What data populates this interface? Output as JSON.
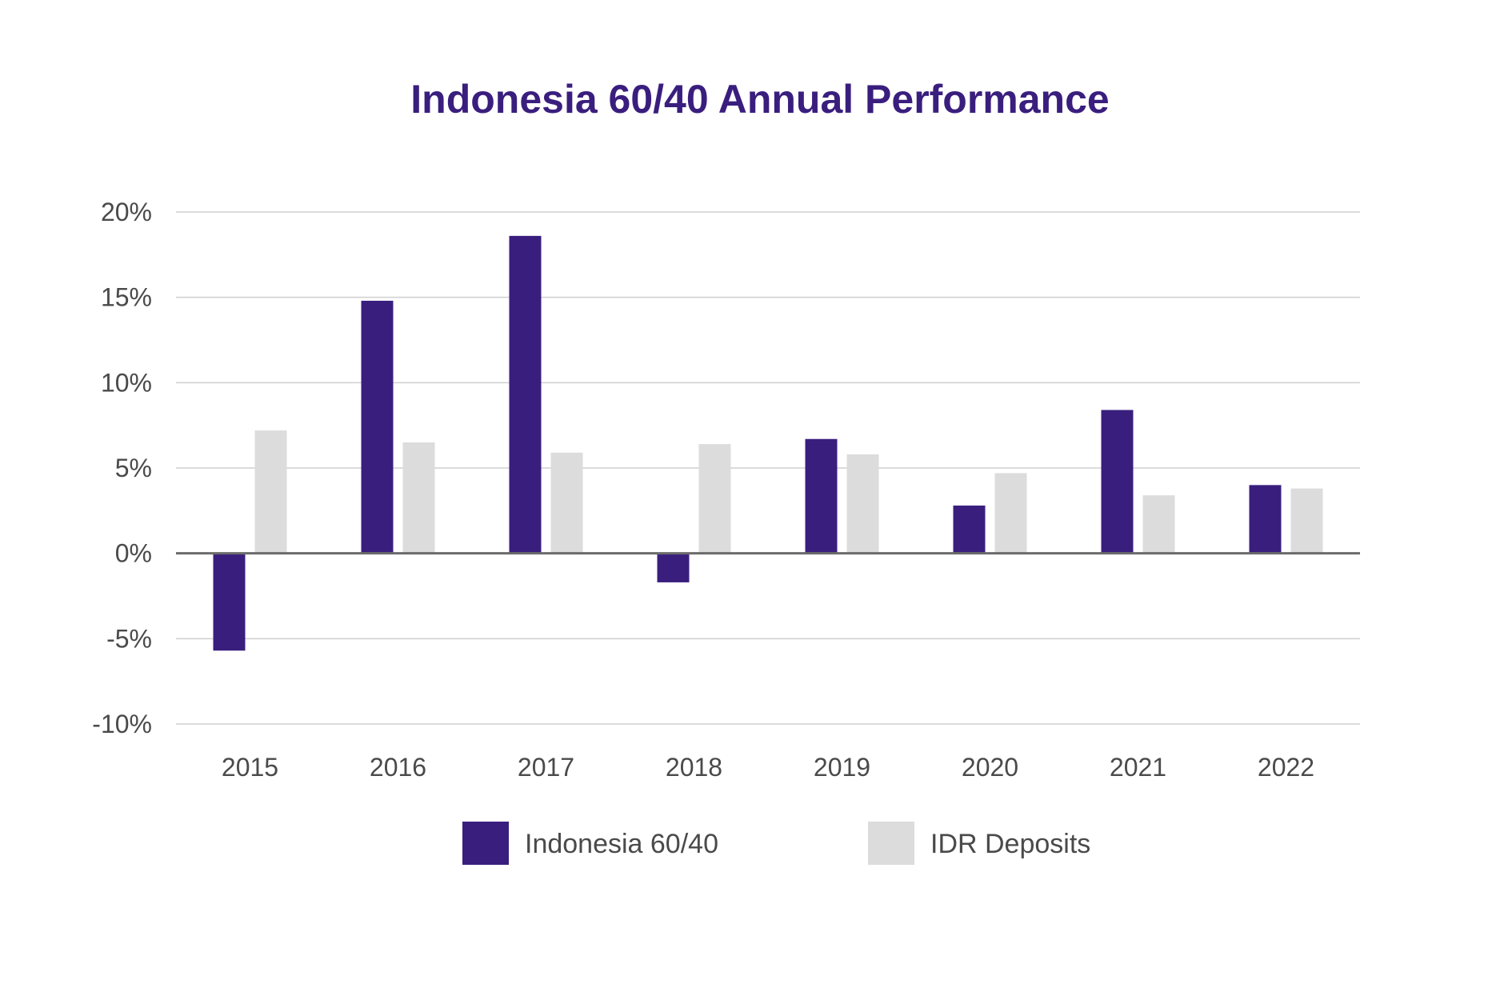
{
  "colors": {
    "title": "#3a1e7e",
    "series_primary": "#3a1e7e",
    "series_secondary": "#dcdcdc",
    "grid": "#cfcfcf",
    "zero_line": "#6b6b6b",
    "text": "#4a4a4a"
  },
  "chart_data": {
    "type": "bar",
    "title": "Indonesia 60/40 Annual Performance",
    "xlabel": "",
    "ylabel": "",
    "categories": [
      "2015",
      "2016",
      "2017",
      "2018",
      "2019",
      "2020",
      "2021",
      "2022"
    ],
    "series": [
      {
        "name": "Indonesia 60/40",
        "values": [
          -5.7,
          14.8,
          18.6,
          -1.7,
          6.7,
          2.8,
          8.4,
          4.0
        ]
      },
      {
        "name": "IDR Deposits",
        "values": [
          7.2,
          6.5,
          5.9,
          6.4,
          5.8,
          4.7,
          3.4,
          3.8
        ]
      }
    ],
    "ylim": [
      -10,
      20
    ],
    "yticks": [
      20,
      15,
      10,
      5,
      0,
      -5,
      -10
    ],
    "ytick_labels": [
      "20%",
      "15%",
      "10%",
      "5%",
      "0%",
      "-5%",
      "-10%"
    ],
    "grid": true,
    "legend_position": "bottom-center"
  }
}
